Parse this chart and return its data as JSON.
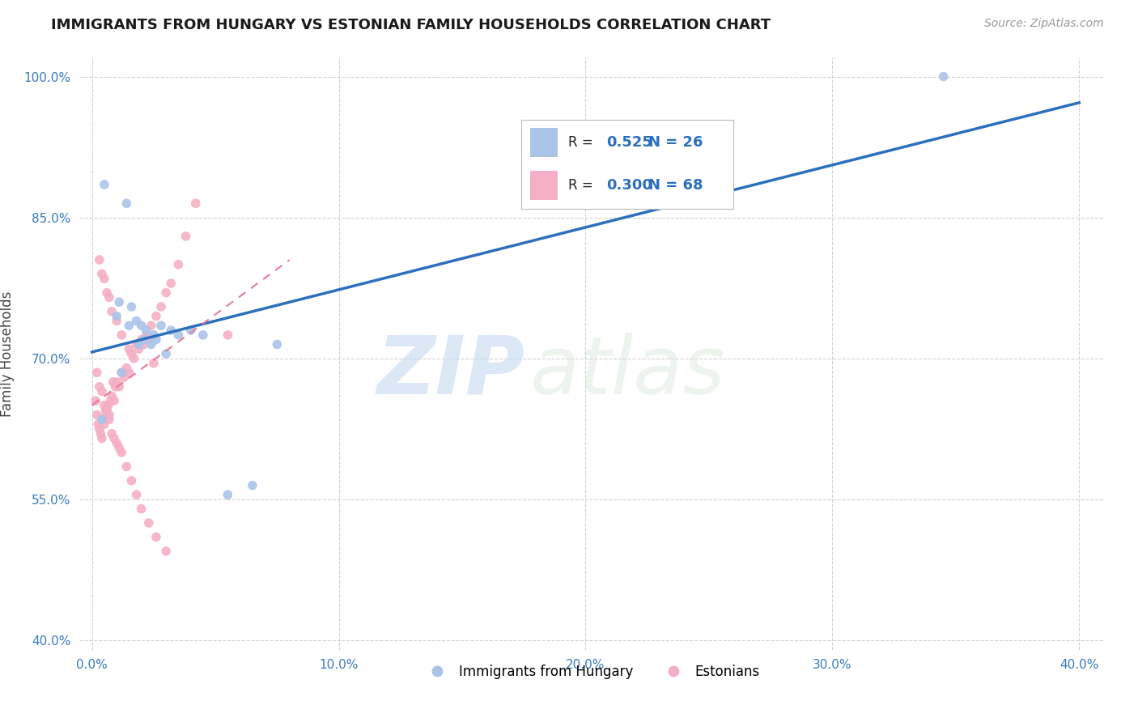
{
  "title": "IMMIGRANTS FROM HUNGARY VS ESTONIAN FAMILY HOUSEHOLDS CORRELATION CHART",
  "source_text": "Source: ZipAtlas.com",
  "ylabel": "Family Households",
  "xlim": [
    -0.5,
    41.0
  ],
  "ylim": [
    39.0,
    102.0
  ],
  "xticks": [
    0.0,
    10.0,
    20.0,
    30.0,
    40.0
  ],
  "yticks": [
    40.0,
    55.0,
    70.0,
    85.0,
    100.0
  ],
  "watermark_text": "ZIP",
  "watermark_text2": "atlas",
  "r_hungary": 0.525,
  "n_hungary": 26,
  "r_estonian": 0.3,
  "n_estonian": 68,
  "color_hungary": "#aac4e8",
  "color_estonian": "#f5afc4",
  "line_color_hungary": "#2c6fbd",
  "line_color_estonian": "#e8799a",
  "hungary_x": [
    0.4,
    0.5,
    1.0,
    1.1,
    1.2,
    1.4,
    1.5,
    1.6,
    1.8,
    1.9,
    2.0,
    2.1,
    2.2,
    2.4,
    2.5,
    2.6,
    2.8,
    3.0,
    3.2,
    3.5,
    4.0,
    4.5,
    5.5,
    6.5,
    7.5,
    34.5
  ],
  "hungary_y": [
    63.5,
    88.5,
    74.5,
    76.0,
    68.5,
    86.5,
    73.5,
    75.5,
    74.0,
    71.5,
    73.5,
    72.0,
    73.0,
    71.5,
    72.5,
    72.0,
    73.5,
    70.5,
    73.0,
    72.5,
    73.0,
    72.5,
    55.5,
    56.5,
    71.5,
    100.0
  ],
  "estonian_x": [
    0.15,
    0.2,
    0.25,
    0.3,
    0.35,
    0.4,
    0.45,
    0.5,
    0.55,
    0.6,
    0.65,
    0.7,
    0.75,
    0.8,
    0.85,
    0.9,
    0.95,
    1.0,
    1.1,
    1.2,
    1.3,
    1.4,
    1.5,
    1.6,
    1.7,
    1.8,
    1.9,
    2.0,
    2.1,
    2.2,
    2.3,
    2.4,
    2.6,
    2.8,
    3.0,
    3.2,
    3.5,
    3.8,
    4.2,
    5.5,
    0.2,
    0.3,
    0.4,
    0.5,
    0.6,
    0.7,
    0.8,
    0.9,
    1.0,
    1.1,
    1.2,
    1.4,
    1.6,
    1.8,
    2.0,
    2.3,
    2.6,
    3.0,
    0.3,
    0.4,
    0.5,
    0.6,
    0.7,
    0.8,
    1.0,
    1.2,
    1.5,
    2.5
  ],
  "estonian_y": [
    65.5,
    64.0,
    63.0,
    62.5,
    62.0,
    61.5,
    63.5,
    63.0,
    64.5,
    64.0,
    65.0,
    64.0,
    65.5,
    66.0,
    67.5,
    65.5,
    67.0,
    67.5,
    67.0,
    68.5,
    68.0,
    69.0,
    68.5,
    70.5,
    70.0,
    71.5,
    71.0,
    72.0,
    71.5,
    72.5,
    72.0,
    73.5,
    74.5,
    75.5,
    77.0,
    78.0,
    80.0,
    83.0,
    86.5,
    72.5,
    68.5,
    67.0,
    66.5,
    65.0,
    64.5,
    63.5,
    62.0,
    61.5,
    61.0,
    60.5,
    60.0,
    58.5,
    57.0,
    55.5,
    54.0,
    52.5,
    51.0,
    49.5,
    80.5,
    79.0,
    78.5,
    77.0,
    76.5,
    75.0,
    74.0,
    72.5,
    71.0,
    69.5
  ]
}
